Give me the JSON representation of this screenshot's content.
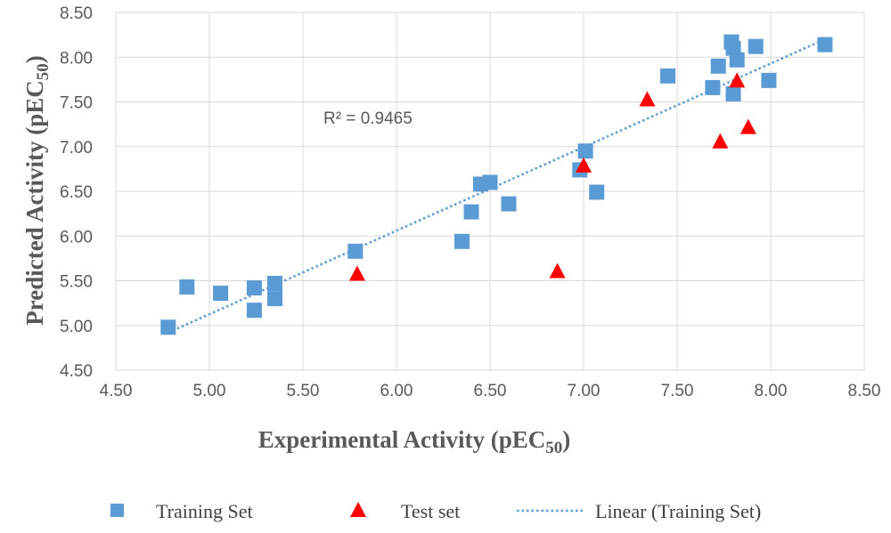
{
  "chart_data": {
    "type": "scatter",
    "xlabel": "Experimental Activity (pEC",
    "xlabel_sub": "50",
    "xlabel_end": ")",
    "ylabel": "Predicted Activity (pEC",
    "ylabel_sub": "50",
    "ylabel_end": ")",
    "xlim": [
      4.5,
      8.5
    ],
    "ylim": [
      4.5,
      8.5
    ],
    "x_ticks": [
      "4.50",
      "5.00",
      "5.50",
      "6.00",
      "6.50",
      "7.00",
      "7.50",
      "8.00",
      "8.50"
    ],
    "y_ticks": [
      "4.50",
      "5.00",
      "5.50",
      "6.00",
      "6.50",
      "7.00",
      "7.50",
      "8.00",
      "8.50"
    ],
    "grid": true,
    "legend_position": "bottom",
    "annotation": "R² = 0.9465",
    "series": [
      {
        "name": "Training Set",
        "marker": "square",
        "color": "#5B9BD5",
        "points": [
          [
            4.78,
            4.98
          ],
          [
            4.88,
            5.43
          ],
          [
            5.06,
            5.36
          ],
          [
            5.24,
            5.42
          ],
          [
            5.24,
            5.17
          ],
          [
            5.35,
            5.47
          ],
          [
            5.35,
            5.3
          ],
          [
            5.78,
            5.83
          ],
          [
            6.35,
            5.94
          ],
          [
            6.4,
            6.27
          ],
          [
            6.45,
            6.58
          ],
          [
            6.5,
            6.6
          ],
          [
            6.6,
            6.36
          ],
          [
            6.98,
            6.74
          ],
          [
            7.01,
            6.95
          ],
          [
            7.07,
            6.49
          ],
          [
            7.45,
            7.79
          ],
          [
            7.69,
            7.66
          ],
          [
            7.72,
            7.9
          ],
          [
            7.79,
            8.17
          ],
          [
            7.8,
            8.1
          ],
          [
            7.8,
            7.59
          ],
          [
            7.82,
            7.97
          ],
          [
            7.92,
            8.12
          ],
          [
            7.99,
            7.74
          ],
          [
            8.29,
            8.14
          ]
        ]
      },
      {
        "name": "Test set",
        "marker": "triangle",
        "color": "#FF0000",
        "points": [
          [
            5.79,
            5.57
          ],
          [
            6.86,
            5.6
          ],
          [
            7.0,
            6.78
          ],
          [
            7.34,
            7.52
          ],
          [
            7.73,
            7.05
          ],
          [
            7.82,
            7.73
          ],
          [
            7.88,
            7.21
          ]
        ]
      },
      {
        "name": "Linear (Training Set)",
        "type": "trendline",
        "style": "dotted",
        "color": "#5B9BD5",
        "points": [
          [
            4.78,
            4.92
          ],
          [
            8.29,
            8.2
          ]
        ]
      }
    ]
  }
}
